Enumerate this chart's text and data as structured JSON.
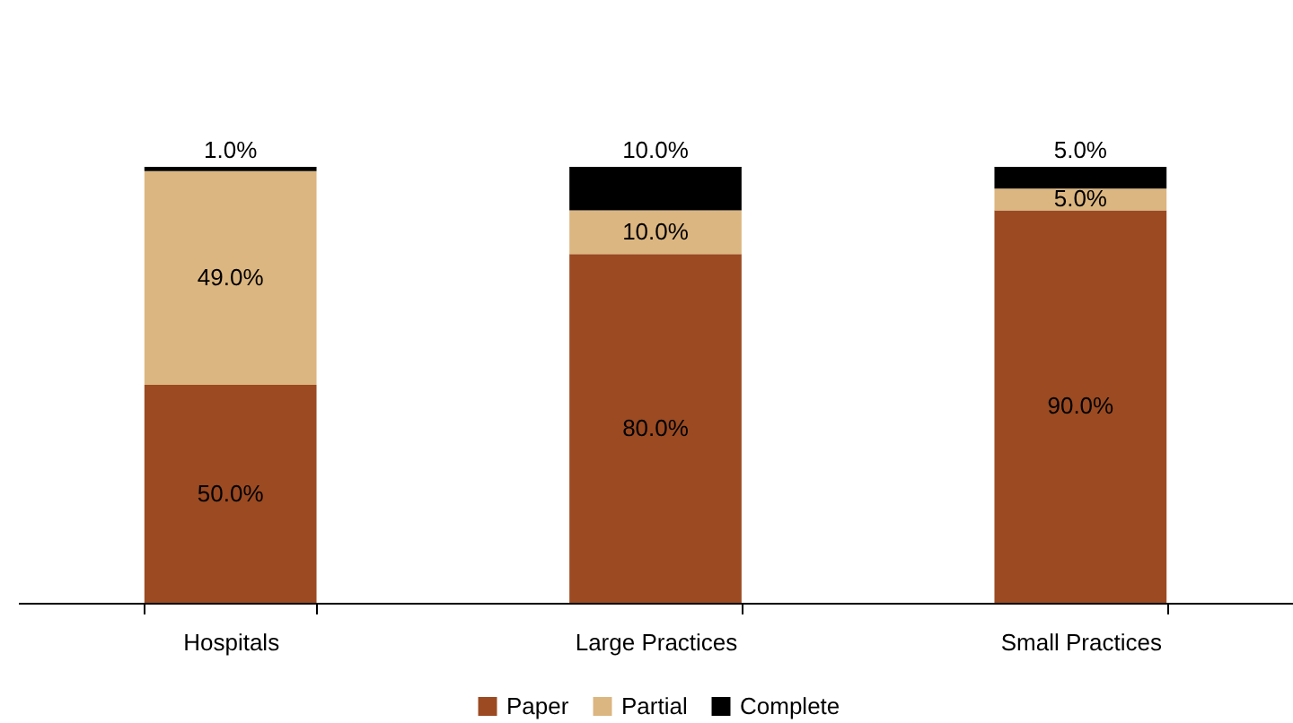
{
  "chart_data": {
    "type": "bar",
    "stacked": true,
    "categories": [
      "Hospitals",
      "Large Practices",
      "Small Practices"
    ],
    "series": [
      {
        "name": "Paper",
        "color": "#9b4a22",
        "values": [
          50,
          80,
          90
        ],
        "value_labels": [
          "50.0%",
          "80.0%",
          "90.0%"
        ]
      },
      {
        "name": "Partial",
        "color": "#dcb680",
        "values": [
          49,
          10,
          5
        ],
        "value_labels": [
          "49.0%",
          "10.0%",
          "5.0%"
        ]
      },
      {
        "name": "Complete",
        "color": "#000000",
        "values": [
          1,
          10,
          5
        ],
        "value_labels": [
          "1.0%",
          "10.0%",
          "5.0%"
        ]
      }
    ],
    "legend": "bottom",
    "grid": false,
    "tick_labels": "x"
  }
}
